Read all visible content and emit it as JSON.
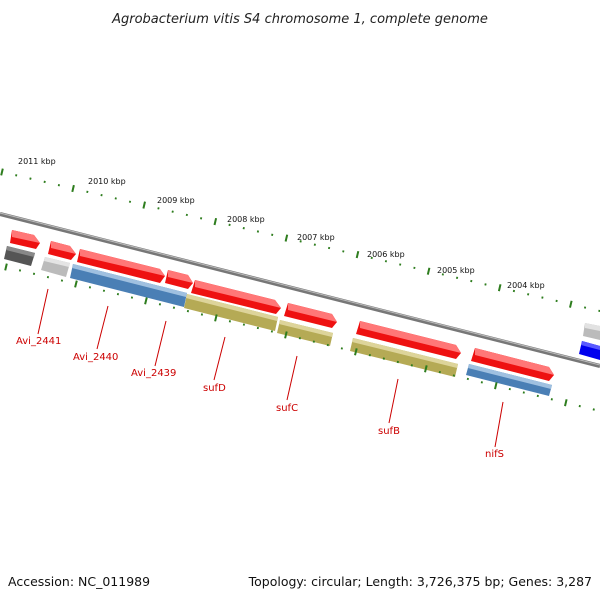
{
  "title": "Agrobacterium vitis S4 chromosome 1, complete genome",
  "footer": {
    "accession": "Accession: NC_011989",
    "summary": "Topology: circular; Length: 3,726,375 bp; Genes: 3,287"
  },
  "colors": {
    "gene_red": "#ee1111",
    "gene_red_light": "#ff7777",
    "cds_blue": "#4a7fb5",
    "cds_blue_light": "#9fc0e0",
    "cds_olive": "#b5aa55",
    "cds_olive_light": "#ddd49a",
    "dark_grey": "#555555",
    "light_grey": "#bbbbbb",
    "backbone": "#777777",
    "ticks": "#2e7d1e",
    "label_red": "#cc0000"
  },
  "scale_labels": [
    "2011 kbp",
    "2010 kbp",
    "2009 kbp",
    "2008 kbp",
    "2007 kbp",
    "2006 kbp",
    "2005 kbp",
    "2004 kbp"
  ],
  "gene_labels": [
    "Avi_2441",
    "Avi_2440",
    "Avi_2439",
    "sufD",
    "sufC",
    "sufB",
    "nifS"
  ]
}
